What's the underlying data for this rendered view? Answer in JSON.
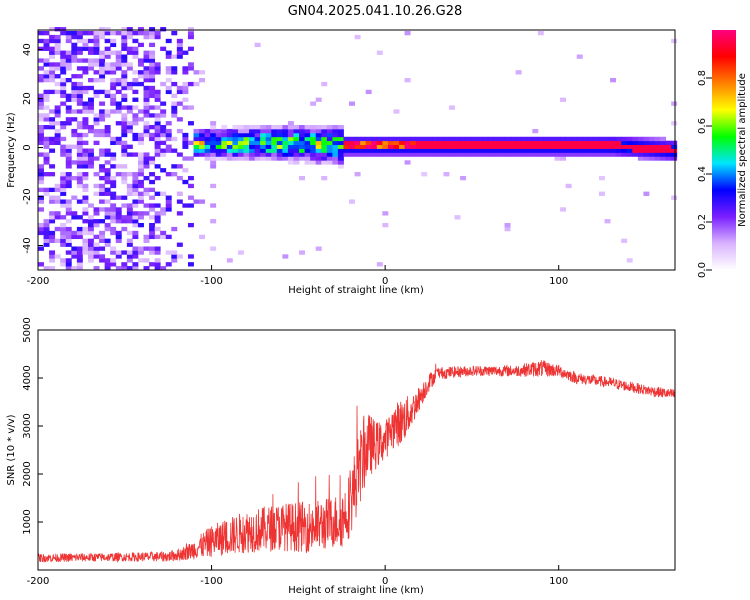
{
  "title": "GN04.2025.041.10.26.G28",
  "chart_data": [
    {
      "type": "heatmap",
      "xlabel": "Height of straight line (km)",
      "ylabel": "Frequency (Hz)",
      "xlim": [
        -200,
        167
      ],
      "ylim": [
        -50,
        48
      ],
      "xticks": [
        -200,
        -100,
        0,
        100
      ],
      "yticks": [
        -40,
        -20,
        0,
        20,
        40
      ],
      "description": "Normalized spectral amplitude vs height; broadband noise below about -110 km, broadening signal band near 0 Hz between -110 and -25 km, narrow strong line near 0 Hz above -25 km, slight negative offset beyond 140 km",
      "band_center_hz": [
        {
          "x": -115,
          "y": 1
        },
        {
          "x": -60,
          "y": 1
        },
        {
          "x": -25,
          "y": 0
        },
        {
          "x": 50,
          "y": 0
        },
        {
          "x": 130,
          "y": 0
        },
        {
          "x": 167,
          "y": -2
        }
      ],
      "colorbar": {
        "label": "Normalized spectral amplitude",
        "range": [
          0.0,
          1.0
        ],
        "ticks": [
          "0.0",
          "0.2",
          "0.4",
          "0.6",
          "0.8"
        ],
        "colors": [
          "#ffffff",
          "#d9b3ff",
          "#7a1fff",
          "#0000ff",
          "#00e5ff",
          "#00ff00",
          "#ffff00",
          "#ff8000",
          "#ff0000",
          "#ff0080"
        ]
      }
    },
    {
      "type": "line",
      "xlabel": "Height of straight line (km)",
      "ylabel": "SNR (10 * v/v)",
      "xlim": [
        -200,
        167
      ],
      "ylim": [
        0,
        5000
      ],
      "xticks": [
        -200,
        -100,
        0,
        100
      ],
      "yticks": [
        1000,
        2000,
        3000,
        4000,
        5000
      ],
      "color": "#ee3333",
      "series": [
        {
          "name": "SNR",
          "x": [
            -200,
            -150,
            -125,
            -115,
            -100,
            -80,
            -60,
            -40,
            -30,
            -25,
            -20,
            -15,
            -10,
            -5,
            0,
            5,
            10,
            15,
            20,
            25,
            30,
            50,
            75,
            90,
            100,
            110,
            130,
            150,
            167
          ],
          "y": [
            250,
            270,
            280,
            350,
            600,
            800,
            900,
            900,
            1000,
            1050,
            1400,
            2100,
            2600,
            2600,
            2700,
            3000,
            3100,
            3300,
            3600,
            3900,
            4100,
            4150,
            4150,
            4200,
            4150,
            4000,
            3900,
            3750,
            3650
          ],
          "noise": [
            90,
            90,
            110,
            150,
            330,
            450,
            500,
            550,
            550,
            600,
            700,
            800,
            700,
            500,
            400,
            450,
            500,
            350,
            250,
            200,
            130,
            110,
            120,
            180,
            130,
            120,
            110,
            110,
            110
          ]
        }
      ]
    }
  ]
}
